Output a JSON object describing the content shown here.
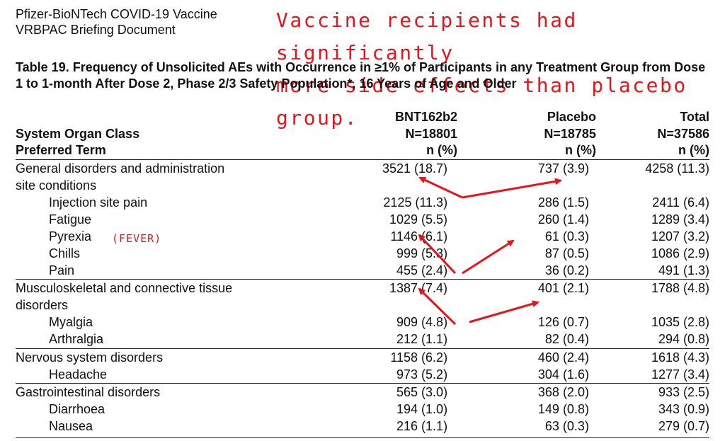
{
  "doc_header": {
    "line1": "Pfizer-BioNTech COVID-19 Vaccine",
    "line2": "VRBPAC Briefing Document"
  },
  "callout": {
    "line1": "Vaccine recipients had significantly",
    "line2": "more side effects than placebo group."
  },
  "fever_note": "(FEVER)",
  "caption": "Table 19. Frequency of Unsolicited AEs with Occurrence in ≥1% of Participants in any Treatment Group from Dose 1 to 1-month After Dose 2, Phase 2/3 Safety Population*, 16 Years of Age and Older",
  "columns": {
    "class_label": "System Organ Class",
    "term_label": "Preferred Term",
    "bnt": {
      "name": "BNT162b2",
      "n": "N=18801",
      "unit": "n (%)"
    },
    "placebo": {
      "name": "Placebo",
      "n": "N=18785",
      "unit": "n (%)"
    },
    "total": {
      "name": "Total",
      "n": "N=37586",
      "unit": "n (%)"
    }
  },
  "rows": [
    {
      "label": "General disorders and administration",
      "bnt": "3521 (18.7)",
      "placebo": "737 (3.9)",
      "total": "4258 (11.3)"
    },
    {
      "label": "site conditions",
      "bnt": "",
      "placebo": "",
      "total": ""
    },
    {
      "label": "Injection site pain",
      "bnt": "2125 (11.3)",
      "placebo": "286 (1.5)",
      "total": "2411 (6.4)"
    },
    {
      "label": "Fatigue",
      "bnt": "1029 (5.5)",
      "placebo": "260 (1.4)",
      "total": "1289 (3.4)"
    },
    {
      "label": "Pyrexia",
      "bnt": "1146 (6.1)",
      "placebo": "61 (0.3)",
      "total": "1207 (3.2)"
    },
    {
      "label": "Chills",
      "bnt": "999 (5.3)",
      "placebo": "87 (0.5)",
      "total": "1086 (2.9)"
    },
    {
      "label": "Pain",
      "bnt": "455 (2.4)",
      "placebo": "36 (0.2)",
      "total": "491 (1.3)"
    },
    {
      "label": "Musculoskeletal and connective tissue",
      "bnt": "1387 (7.4)",
      "placebo": "401 (2.1)",
      "total": "1788 (4.8)"
    },
    {
      "label": "disorders",
      "bnt": "",
      "placebo": "",
      "total": ""
    },
    {
      "label": "Myalgia",
      "bnt": "909 (4.8)",
      "placebo": "126 (0.7)",
      "total": "1035 (2.8)"
    },
    {
      "label": "Arthralgia",
      "bnt": "212 (1.1)",
      "placebo": "82 (0.4)",
      "total": "294 (0.8)"
    },
    {
      "label": "Nervous system disorders",
      "bnt": "1158 (6.2)",
      "placebo": "460 (2.4)",
      "total": "1618 (4.3)"
    },
    {
      "label": "Headache",
      "bnt": "973 (5.2)",
      "placebo": "304 (1.6)",
      "total": "1277 (3.4)"
    },
    {
      "label": "Gastrointestinal disorders",
      "bnt": "565 (3.0)",
      "placebo": "368 (2.0)",
      "total": "933 (2.5)"
    },
    {
      "label": "Diarrhoea",
      "bnt": "194 (1.0)",
      "placebo": "149 (0.8)",
      "total": "343 (0.9)"
    },
    {
      "label": "Nausea",
      "bnt": "216 (1.1)",
      "placebo": "63 (0.3)",
      "total": "279 (0.7)"
    }
  ],
  "colors": {
    "annotation": "#e8141b",
    "text": "#111111"
  }
}
